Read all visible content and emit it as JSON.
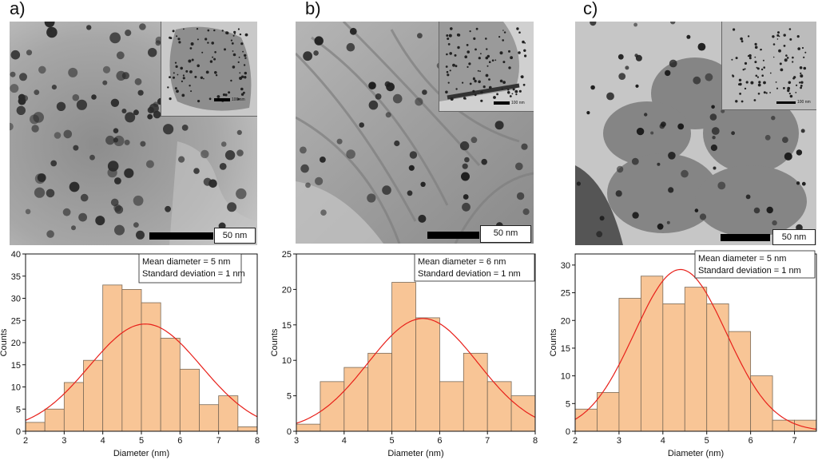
{
  "panels": [
    {
      "letter": "a)",
      "scale_label": "50 nm",
      "inset_scale_label": "100 nm"
    },
    {
      "letter": "b)",
      "scale_label": "50 nm",
      "inset_scale_label": "100 nm"
    },
    {
      "letter": "c)",
      "scale_label": "50 nm",
      "inset_scale_label": "100 nm"
    }
  ],
  "chart_data": [
    {
      "type": "bar",
      "xlabel": "Diameter (nm)",
      "ylabel": "Counts",
      "xlim": [
        2,
        8
      ],
      "ylim": [
        0,
        40
      ],
      "xticks": [
        2,
        3,
        4,
        5,
        6,
        7,
        8
      ],
      "yticks": [
        0,
        5,
        10,
        15,
        20,
        25,
        30,
        35,
        40
      ],
      "bin_width": 0.5,
      "bin_starts": [
        2,
        2.5,
        3,
        3.5,
        4,
        4.5,
        5,
        5.5,
        6,
        6.5,
        7,
        7.5
      ],
      "values": [
        2,
        5,
        11,
        16,
        33,
        32,
        29,
        21,
        14,
        6,
        8,
        1
      ],
      "fit": {
        "type": "gaussian",
        "center": 5.1,
        "peak": 24.2,
        "sigma": 1.45
      },
      "annotation": [
        "Mean diameter = 5 nm",
        "Standard deviation = 1 nm"
      ],
      "bar_color": "#f8c596",
      "fit_color": "#e8201a"
    },
    {
      "type": "bar",
      "xlabel": "Diameter (nm)",
      "ylabel": "Counts",
      "xlim": [
        3,
        8
      ],
      "ylim": [
        0,
        25
      ],
      "xticks": [
        3,
        4,
        5,
        6,
        7,
        8
      ],
      "yticks": [
        0,
        5,
        10,
        15,
        20,
        25
      ],
      "bin_width": 0.5,
      "bin_starts": [
        3,
        3.5,
        4,
        4.5,
        5,
        5.5,
        6,
        6.5,
        7,
        7.5
      ],
      "values": [
        1,
        7,
        9,
        11,
        21,
        16,
        7,
        11,
        7,
        5
      ],
      "fit": {
        "type": "gaussian",
        "center": 5.65,
        "peak": 15.9,
        "sigma": 1.15
      },
      "annotation": [
        "Mean diameter = 6 nm",
        "Standard deviation = 1 nm"
      ],
      "bar_color": "#f8c596",
      "fit_color": "#e8201a"
    },
    {
      "type": "bar",
      "xlabel": "Diameter (nm)",
      "ylabel": "Counts",
      "xlim": [
        2,
        7.5
      ],
      "ylim": [
        0,
        32
      ],
      "xticks": [
        2,
        3,
        4,
        5,
        6,
        7
      ],
      "yticks": [
        0,
        5,
        10,
        15,
        20,
        25,
        30
      ],
      "bin_width": 0.5,
      "bin_starts": [
        2,
        2.5,
        3,
        3.5,
        4,
        4.5,
        5,
        5.5,
        6,
        6.5,
        7
      ],
      "values": [
        4,
        7,
        24,
        28,
        23,
        26,
        23,
        18,
        10,
        2,
        2
      ],
      "fit": {
        "type": "gaussian",
        "center": 4.4,
        "peak": 29.2,
        "sigma": 1.05
      },
      "annotation": [
        "Mean diameter =  5 nm",
        "Standard deviation = 1 nm"
      ],
      "bar_color": "#f8c596",
      "fit_color": "#e8201a"
    }
  ]
}
